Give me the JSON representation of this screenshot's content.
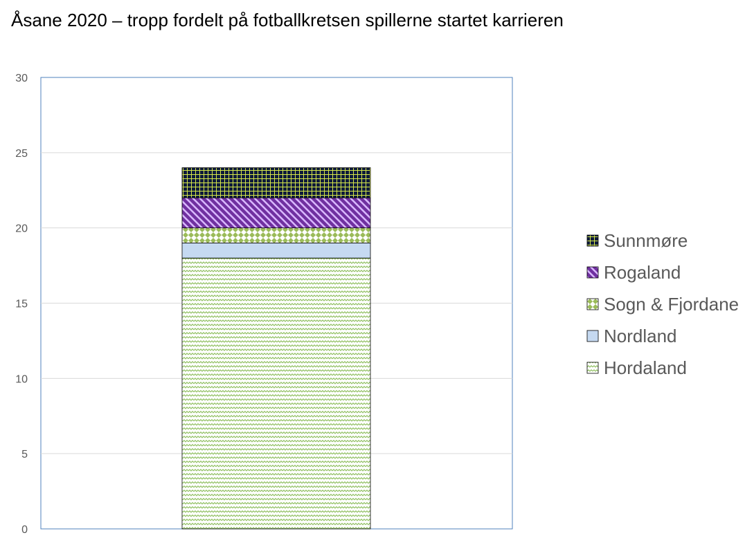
{
  "chart_data": {
    "type": "bar",
    "stacked": true,
    "title": "Åsane 2020 – tropp fordelt på fotballkretsen spillerne startet karrieren",
    "xlabel": "",
    "ylabel": "",
    "categories": [
      ""
    ],
    "ylim": [
      0,
      30
    ],
    "yticks": [
      0,
      5,
      10,
      15,
      20,
      25,
      30
    ],
    "grid": true,
    "legend_position": "right",
    "series": [
      {
        "name": "Hordaland",
        "values": [
          18
        ],
        "color": "#8fbf5f",
        "pattern": "wave"
      },
      {
        "name": "Nordland",
        "values": [
          1
        ],
        "color": "#c5d9f1",
        "pattern": "solid"
      },
      {
        "name": "Sogn & Fjordane",
        "values": [
          1
        ],
        "color": "#9bbb59",
        "pattern": "diamond"
      },
      {
        "name": "Rogaland",
        "values": [
          2
        ],
        "color": "#7030a0",
        "pattern": "diagonal"
      },
      {
        "name": "Sunnmøre",
        "values": [
          2
        ],
        "color": "#0d1a3a",
        "pattern": "grid"
      }
    ],
    "legend_order": [
      "Sunnmøre",
      "Rogaland",
      "Sogn & Fjordane",
      "Nordland",
      "Hordaland"
    ]
  }
}
